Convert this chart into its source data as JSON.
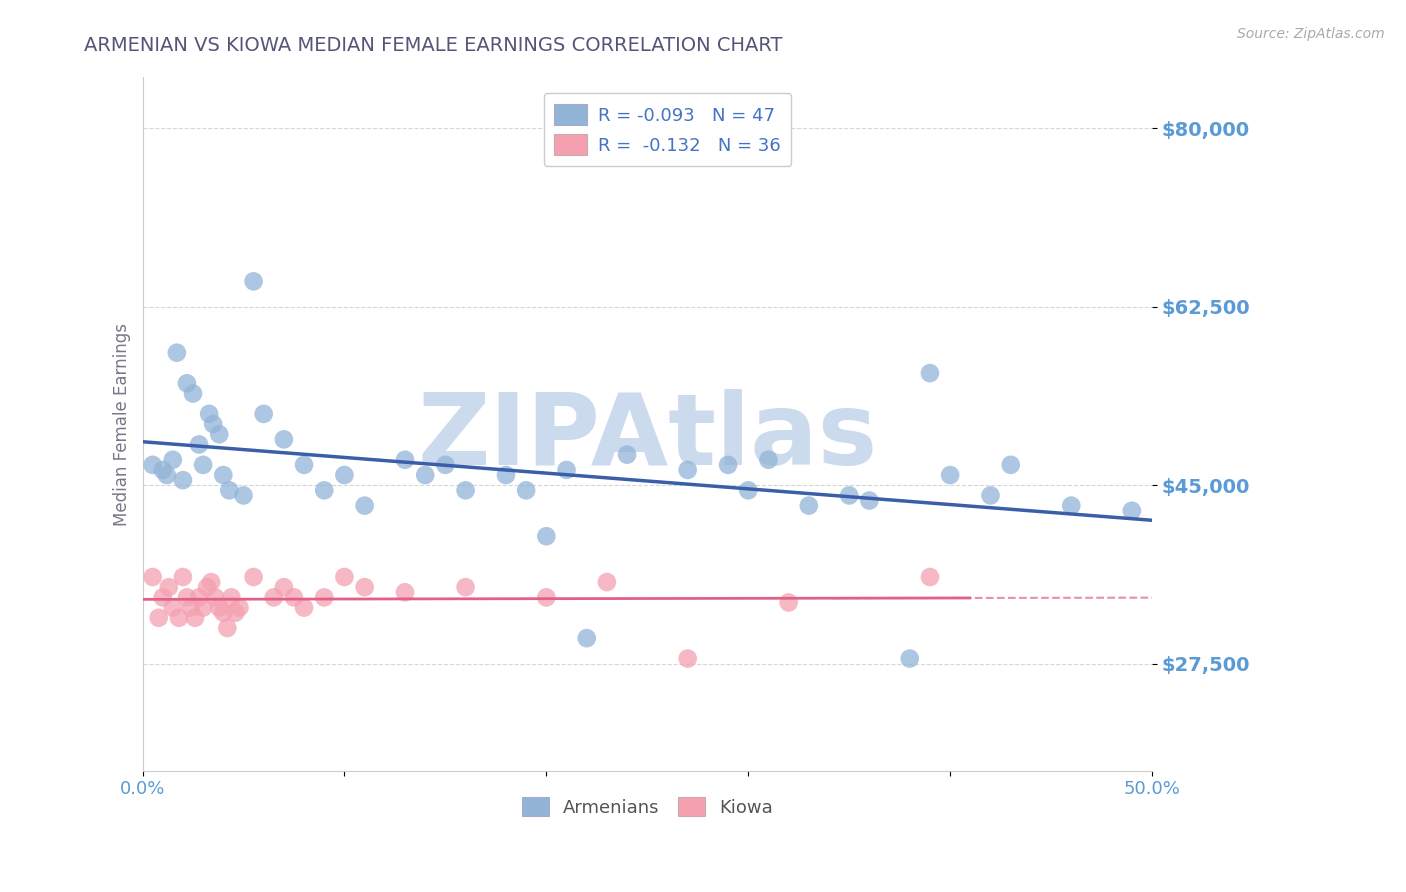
{
  "title": "ARMENIAN VS KIOWA MEDIAN FEMALE EARNINGS CORRELATION CHART",
  "source": "Source: ZipAtlas.com",
  "ylabel": "Median Female Earnings",
  "xlim": [
    0.0,
    0.5
  ],
  "ylim": [
    17000,
    85000
  ],
  "yticks": [
    27500,
    45000,
    62500,
    80000
  ],
  "ytick_labels": [
    "$27,500",
    "$45,000",
    "$62,500",
    "$80,000"
  ],
  "xticks": [
    0.0,
    0.1,
    0.2,
    0.3,
    0.4,
    0.5
  ],
  "xtick_labels": [
    "0.0%",
    "",
    "",
    "",
    "",
    "50.0%"
  ],
  "armenian_color": "#92b4d7",
  "kiowa_color": "#f4a0b0",
  "armenian_line_color": "#3a5fa8",
  "kiowa_line_color": "#e0608a",
  "legend_label_armenian": "R = -0.093   N = 47",
  "legend_label_kiowa": "R =  -0.132   N = 36",
  "legend_bottom_armenian": "Armenians",
  "legend_bottom_kiowa": "Kiowa",
  "title_color": "#555577",
  "tick_color": "#5b9bd5",
  "watermark": "ZIPAtlas",
  "watermark_color": "#ccdaee",
  "background_color": "#ffffff",
  "grid_color": "#cccccc",
  "armenian_x": [
    0.005,
    0.01,
    0.012,
    0.015,
    0.017,
    0.02,
    0.022,
    0.025,
    0.028,
    0.03,
    0.033,
    0.035,
    0.038,
    0.04,
    0.043,
    0.05,
    0.055,
    0.06,
    0.07,
    0.08,
    0.09,
    0.1,
    0.11,
    0.13,
    0.14,
    0.15,
    0.16,
    0.18,
    0.19,
    0.2,
    0.21,
    0.22,
    0.24,
    0.27,
    0.29,
    0.3,
    0.31,
    0.33,
    0.35,
    0.36,
    0.38,
    0.39,
    0.4,
    0.42,
    0.43,
    0.46,
    0.49
  ],
  "armenian_y": [
    47000,
    46500,
    46000,
    47500,
    58000,
    45500,
    55000,
    54000,
    49000,
    47000,
    52000,
    51000,
    50000,
    46000,
    44500,
    44000,
    65000,
    52000,
    49500,
    47000,
    44500,
    46000,
    43000,
    47500,
    46000,
    47000,
    44500,
    46000,
    44500,
    40000,
    46500,
    30000,
    48000,
    46500,
    47000,
    44500,
    47500,
    43000,
    44000,
    43500,
    28000,
    56000,
    46000,
    44000,
    47000,
    43000,
    42500
  ],
  "kiowa_x": [
    0.005,
    0.008,
    0.01,
    0.013,
    0.015,
    0.018,
    0.02,
    0.022,
    0.024,
    0.026,
    0.028,
    0.03,
    0.032,
    0.034,
    0.036,
    0.038,
    0.04,
    0.042,
    0.044,
    0.046,
    0.048,
    0.055,
    0.065,
    0.07,
    0.075,
    0.08,
    0.09,
    0.1,
    0.11,
    0.13,
    0.16,
    0.2,
    0.23,
    0.27,
    0.32,
    0.39
  ],
  "kiowa_y": [
    36000,
    32000,
    34000,
    35000,
    33000,
    32000,
    36000,
    34000,
    33000,
    32000,
    34000,
    33000,
    35000,
    35500,
    34000,
    33000,
    32500,
    31000,
    34000,
    32500,
    33000,
    36000,
    34000,
    35000,
    34000,
    33000,
    34000,
    36000,
    35000,
    34500,
    35000,
    34000,
    35500,
    28000,
    33500,
    36000
  ]
}
